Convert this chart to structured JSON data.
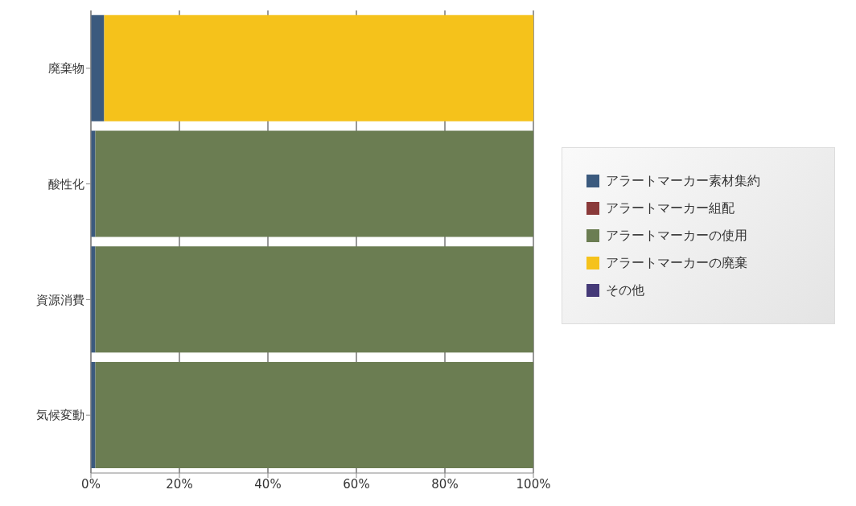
{
  "chart_data": {
    "type": "bar",
    "orientation": "horizontal",
    "stacked": true,
    "categories": [
      "廃棄物",
      "酸性化",
      "資源消費",
      "気候変動"
    ],
    "series": [
      {
        "name": "アラートマーカー素材集約",
        "color": "#3b5a7e",
        "values": [
          3,
          1,
          1,
          1
        ]
      },
      {
        "name": "アラートマーカー組配",
        "color": "#8a3a3a",
        "values": [
          0,
          0,
          0,
          0
        ]
      },
      {
        "name": "アラートマーカーの使用",
        "color": "#6b7d52",
        "values": [
          0,
          99,
          99,
          99
        ]
      },
      {
        "name": "アラートマーカーの廃棄",
        "color": "#f5c21b",
        "values": [
          97,
          0,
          0,
          0
        ]
      },
      {
        "name": "その他",
        "color": "#453a78",
        "values": [
          0,
          0,
          0,
          0
        ]
      }
    ],
    "xlim": [
      0,
      100
    ],
    "xticks": [
      {
        "value": 0,
        "label": "0%"
      },
      {
        "value": 20,
        "label": "20%"
      },
      {
        "value": 40,
        "label": "40%"
      },
      {
        "value": 60,
        "label": "60%"
      },
      {
        "value": 80,
        "label": "80%"
      },
      {
        "value": 100,
        "label": "100%"
      }
    ],
    "grid": "x",
    "legend": "right"
  }
}
